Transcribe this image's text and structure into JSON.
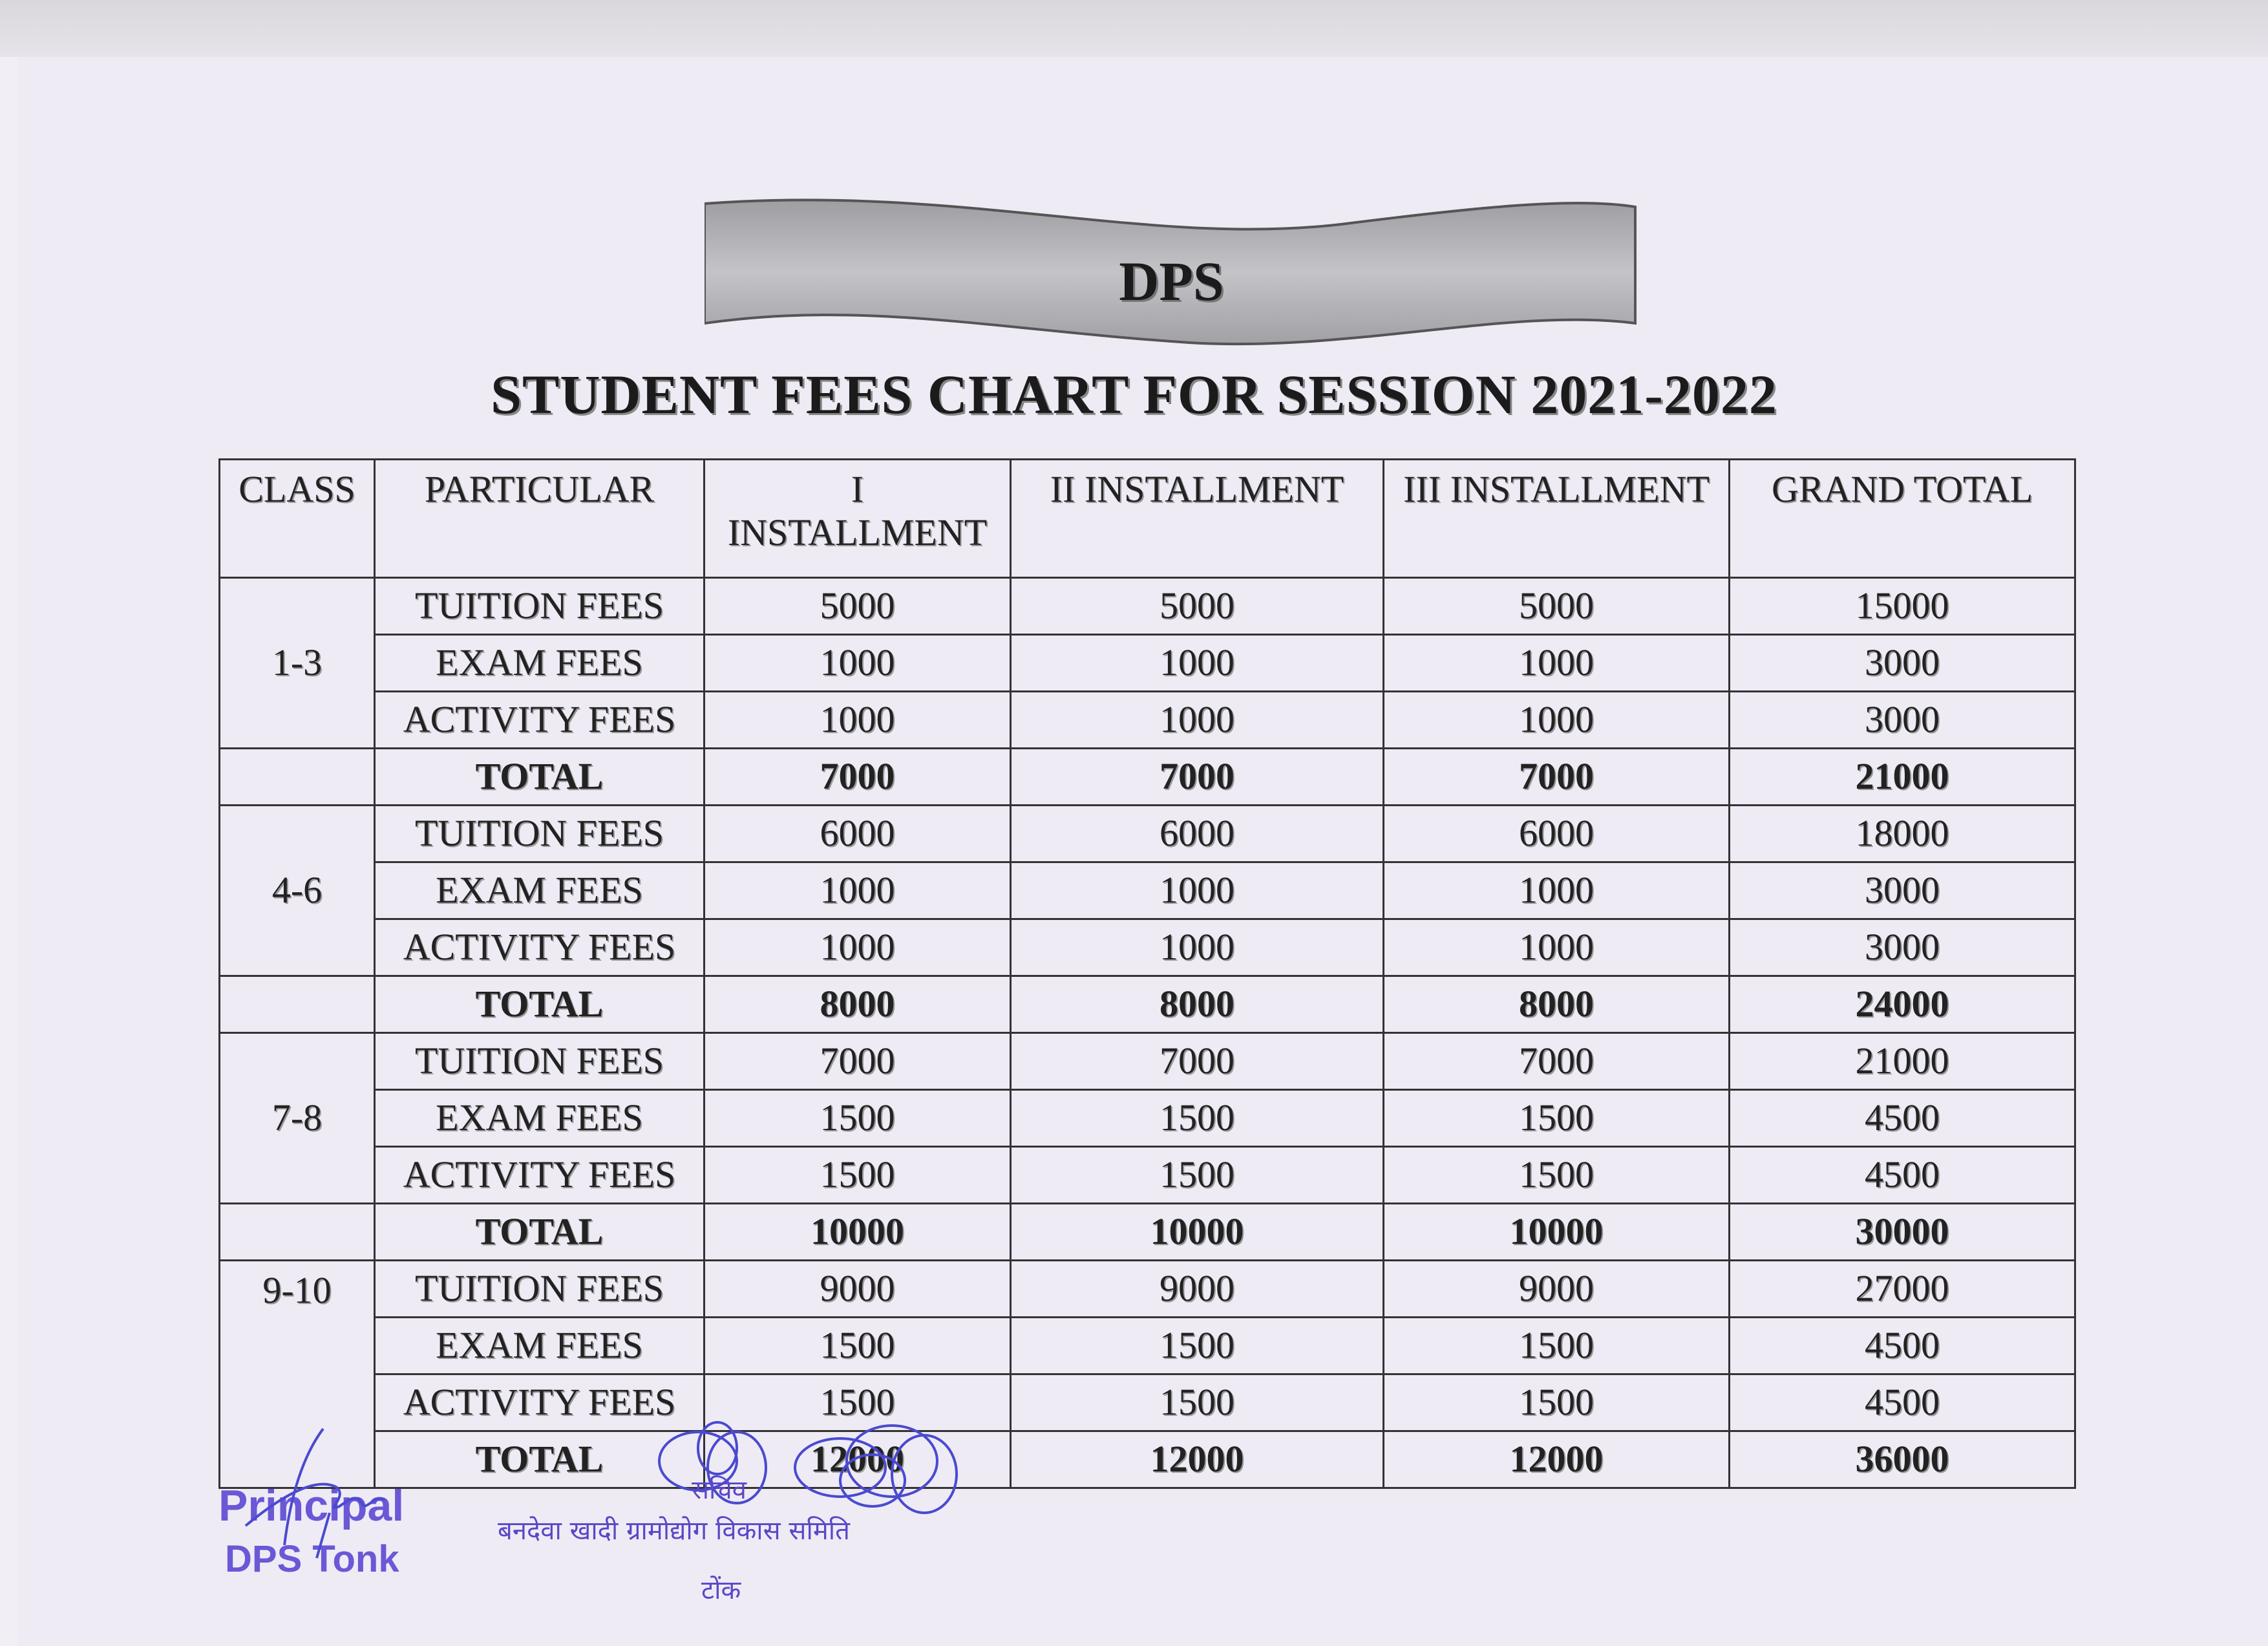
{
  "banner": {
    "text": "DPS"
  },
  "title": "STUDENT FEES CHART FOR SESSION 2021-2022",
  "table": {
    "headers": [
      "CLASS",
      "PARTICULAR",
      "I INSTALLMENT",
      "II INSTALLMENT",
      "III INSTALLMENT",
      "GRAND TOTAL"
    ],
    "groups": [
      {
        "class": "1-3",
        "rows": [
          [
            "TUITION FEES",
            "5000",
            "5000",
            "5000",
            "15000"
          ],
          [
            "EXAM FEES",
            "1000",
            "1000",
            "1000",
            "3000"
          ],
          [
            "ACTIVITY FEES",
            "1000",
            "1000",
            "1000",
            "3000"
          ]
        ],
        "total": [
          "TOTAL",
          "7000",
          "7000",
          "7000",
          "21000"
        ]
      },
      {
        "class": "4-6",
        "rows": [
          [
            "TUITION FEES",
            "6000",
            "6000",
            "6000",
            "18000"
          ],
          [
            "EXAM FEES",
            "1000",
            "1000",
            "1000",
            "3000"
          ],
          [
            "ACTIVITY FEES",
            "1000",
            "1000",
            "1000",
            "3000"
          ]
        ],
        "total": [
          "TOTAL",
          "8000",
          "8000",
          "8000",
          "24000"
        ]
      },
      {
        "class": "7-8",
        "rows": [
          [
            "TUITION FEES",
            "7000",
            "7000",
            "7000",
            "21000"
          ],
          [
            "EXAM FEES",
            "1500",
            "1500",
            "1500",
            "4500"
          ],
          [
            "ACTIVITY FEES",
            "1500",
            "1500",
            "1500",
            "4500"
          ]
        ],
        "total": [
          "TOTAL",
          "10000",
          "10000",
          "10000",
          "30000"
        ]
      },
      {
        "class": "9-10",
        "rows": [
          [
            "TUITION FEES",
            "9000",
            "9000",
            "9000",
            "27000"
          ],
          [
            "EXAM FEES",
            "1500",
            "1500",
            "1500",
            "4500"
          ],
          [
            "ACTIVITY FEES",
            "1500",
            "1500",
            "1500",
            "4500"
          ]
        ],
        "total": [
          "TOTAL",
          "12000",
          "12000",
          "12000",
          "36000"
        ]
      }
    ]
  },
  "stamps": {
    "principal_line1": "Principal",
    "principal_line2": "DPS Tonk",
    "secretary_label": "सचिव",
    "society_name": "बनदेवा खादी ग्रामोद्योग विकास समिति",
    "society_place": "टोंक"
  },
  "colors": {
    "stamp_ink": "#6b58d6",
    "signature_ink": "#4a4ad0",
    "banner_fill": "#a9a9ad"
  }
}
